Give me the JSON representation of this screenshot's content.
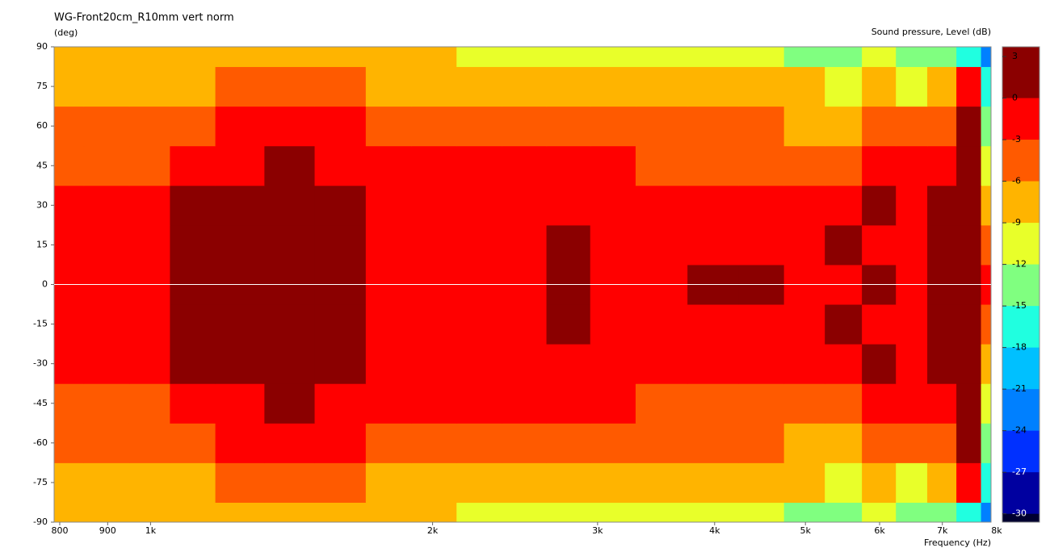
{
  "chart_data": {
    "type": "contour",
    "title": "WG-Front20cm_R10mm vert norm",
    "y_label": "(deg)",
    "x_label": "Frequency  (Hz)",
    "colorbar_label": "Sound pressure, Level  (dB)",
    "x_scale": "log",
    "xlim": [
      789,
      7890
    ],
    "xticks": [
      800,
      900,
      {
        "value": 1000,
        "label": "1k"
      },
      {
        "value": 2000,
        "label": "2k"
      },
      {
        "value": 3000,
        "label": "3k"
      },
      {
        "value": 4000,
        "label": "4k"
      },
      {
        "value": 5000,
        "label": "5k"
      },
      {
        "value": 6000,
        "label": "6k"
      },
      {
        "value": 7000,
        "label": "7k"
      },
      {
        "value": 8000,
        "label": "8k"
      }
    ],
    "ylim": [
      -90,
      90
    ],
    "yticks": [
      90,
      75,
      60,
      45,
      30,
      15,
      0,
      -15,
      -30,
      -45,
      -60,
      -75,
      -90
    ],
    "zlim": [
      -30.6,
      3.7
    ],
    "zticks": [
      3,
      0,
      -3,
      -6,
      -9,
      -12,
      -15,
      -18,
      -21,
      -24,
      -27,
      -30
    ],
    "band_colors": [
      "#8b0000",
      "#ff0000",
      "#ff5a00",
      "#ffb400",
      "#e8ff2a",
      "#80ff80",
      "#20ffe0",
      "#00c0ff",
      "#0080ff",
      "#0030ff",
      "#0000a0",
      "#000030"
    ],
    "x": [
      800,
      900,
      1000,
      1100,
      1250,
      1400,
      1600,
      1800,
      2000,
      2250,
      2500,
      2800,
      3100,
      3500,
      4000,
      4500,
      5000,
      5500,
      6000,
      6500,
      7000,
      7500,
      7900
    ],
    "y": [
      -90,
      -75,
      -60,
      -45,
      -30,
      -15,
      0,
      15,
      30,
      45,
      60,
      75,
      90
    ],
    "z": [
      [
        -8,
        -8,
        -8,
        -8.5,
        -7.5,
        -7,
        -7.5,
        -8,
        -8.5,
        -9.5,
        -10,
        -10.5,
        -10,
        -10,
        -11,
        -11.5,
        -12,
        -13,
        -10,
        -12,
        -12,
        -15,
        -22
      ],
      [
        -7,
        -7,
        -7,
        -7,
        -5,
        -5,
        -5.5,
        -6,
        -6.5,
        -7,
        -6.5,
        -7,
        -8,
        -7.5,
        -7,
        -7,
        -8,
        -9,
        -8,
        -9,
        -7,
        -2,
        -17
      ],
      [
        -5,
        -5,
        -5,
        -4.5,
        -2.5,
        -2.5,
        -2.8,
        -3.5,
        -4,
        -4,
        -3.5,
        -3.5,
        -4.5,
        -5,
        -5,
        -5,
        -6,
        -6,
        -5,
        -5,
        -3,
        0.5,
        -12
      ],
      [
        -3,
        -3,
        -3,
        -2.5,
        -1,
        0.5,
        -1,
        -2,
        -2,
        -2,
        -2,
        -2,
        -2.5,
        -3.5,
        -4,
        -3.5,
        -4,
        -3.5,
        -2,
        -2,
        0,
        1,
        -9
      ],
      [
        -1.5,
        -1.5,
        -1.5,
        0.5,
        1,
        1.2,
        0.8,
        -1,
        -1.5,
        -1.5,
        -1,
        -1,
        -1.5,
        -2,
        -2,
        -1.5,
        -2,
        -1,
        0.5,
        -2,
        0.5,
        1,
        -6
      ],
      [
        -1,
        -1,
        -1,
        1,
        1.5,
        1.5,
        1,
        -0.5,
        -1,
        -1,
        -0.5,
        0.5,
        -1,
        -1,
        -0.5,
        -0.5,
        -1,
        0.5,
        -1,
        -1,
        0.5,
        1,
        -3
      ],
      [
        -1,
        -1,
        -0.5,
        1,
        1.5,
        1.5,
        1,
        -0.5,
        -1,
        -1,
        -0.5,
        1,
        -0.5,
        -1,
        0.5,
        0.5,
        -1,
        -0.5,
        1,
        -0.5,
        0.5,
        1,
        -2
      ],
      [
        -1,
        -1,
        -1,
        1,
        1.5,
        1.5,
        1,
        -0.5,
        -1,
        -1,
        -0.5,
        0.5,
        -1,
        -1,
        -0.5,
        -0.5,
        -1,
        0.5,
        -1,
        -1,
        0.5,
        1,
        -3
      ],
      [
        -1.5,
        -1.5,
        -1.5,
        0.5,
        1,
        1.2,
        0.8,
        -1,
        -1.5,
        -1.5,
        -1,
        -1,
        -1.5,
        -2,
        -2,
        -1.5,
        -2,
        -1,
        0.5,
        -2,
        0.5,
        1,
        -6
      ],
      [
        -3,
        -3,
        -3,
        -2.5,
        -1,
        0.5,
        -1,
        -2,
        -2,
        -2,
        -2,
        -2,
        -2.5,
        -3.5,
        -4,
        -3.5,
        -4,
        -3.5,
        -2,
        -2,
        0,
        1,
        -9
      ],
      [
        -5,
        -5,
        -5,
        -4.5,
        -2.5,
        -2.5,
        -2.8,
        -3.5,
        -4,
        -4,
        -3.5,
        -3.5,
        -4.5,
        -5,
        -5,
        -5,
        -6,
        -6,
        -5,
        -5,
        -3,
        0.5,
        -12
      ],
      [
        -7,
        -7,
        -7,
        -7,
        -5,
        -5,
        -5.5,
        -6,
        -6.5,
        -7,
        -6.5,
        -7,
        -8,
        -7.5,
        -7,
        -7,
        -8,
        -9,
        -8,
        -9,
        -7,
        -2,
        -17
      ],
      [
        -8,
        -8,
        -8,
        -8.5,
        -7.5,
        -7,
        -7.5,
        -8,
        -8.5,
        -9.5,
        -10,
        -10.5,
        -10,
        -10,
        -11,
        -11.5,
        -12,
        -13,
        -10,
        -12,
        -12,
        -15,
        -22
      ]
    ]
  }
}
